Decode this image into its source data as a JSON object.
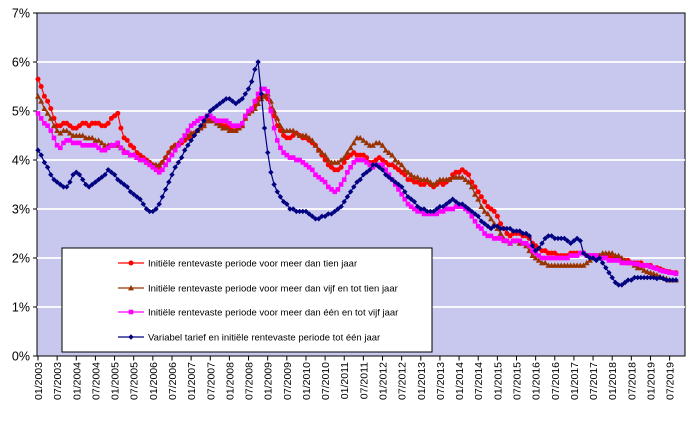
{
  "chart_data": {
    "type": "line",
    "title": "",
    "frequency": "monthly",
    "x_start": "01/2003",
    "x_end": "09/2019",
    "y_axis": {
      "min": 0,
      "max": 7,
      "step": 1,
      "suffix": "%",
      "labels": [
        "0%",
        "1%",
        "2%",
        "3%",
        "4%",
        "5%",
        "6%",
        "7%"
      ]
    },
    "x_tick_labels": [
      "01/2003",
      "07/2003",
      "01/2004",
      "07/2004",
      "01/2005",
      "07/2005",
      "01/2006",
      "07/2006",
      "01/2007",
      "07/2007",
      "01/2008",
      "07/2008",
      "01/2009",
      "07/2009",
      "01/2010",
      "07/2010",
      "01/2011",
      "07/2011",
      "01/2012",
      "07/2012",
      "01/2013",
      "07/2013",
      "01/2014",
      "07/2014",
      "01/2015",
      "07/2015",
      "01/2016",
      "07/2016",
      "01/2017",
      "07/2017",
      "01/2018",
      "07/2018",
      "01/2019",
      "07/2019"
    ],
    "grid": true,
    "legend_position": "overlay-bottom-left",
    "colors": {
      "plot_background": "#C8C8EE",
      "gridline": "#FFFFFF",
      "axis": "#000000",
      "legend_background": "#FFFFFF",
      "legend_border": "#000000"
    },
    "series": [
      {
        "name": "Initiële rentevaste periode voor meer dan tien jaar",
        "color": "#FF0000",
        "marker": "circle",
        "values": [
          5.65,
          5.5,
          5.3,
          5.2,
          5.05,
          4.85,
          4.7,
          4.7,
          4.75,
          4.75,
          4.7,
          4.65,
          4.65,
          4.7,
          4.75,
          4.75,
          4.7,
          4.75,
          4.75,
          4.75,
          4.7,
          4.7,
          4.75,
          4.85,
          4.9,
          4.95,
          4.65,
          4.45,
          4.4,
          4.3,
          4.25,
          4.15,
          4.1,
          4.05,
          4.0,
          3.95,
          3.9,
          3.85,
          3.85,
          3.95,
          4.05,
          4.15,
          4.25,
          4.3,
          4.3,
          4.35,
          4.4,
          4.45,
          4.5,
          4.55,
          4.6,
          4.65,
          4.7,
          4.8,
          4.85,
          4.85,
          4.8,
          4.75,
          4.7,
          4.7,
          4.65,
          4.6,
          4.6,
          4.65,
          4.7,
          4.85,
          4.95,
          5.0,
          5.1,
          5.25,
          5.3,
          5.3,
          5.25,
          5.05,
          4.9,
          4.7,
          4.6,
          4.5,
          4.45,
          4.45,
          4.5,
          4.55,
          4.5,
          4.45,
          4.45,
          4.4,
          4.35,
          4.3,
          4.2,
          4.1,
          4.0,
          3.9,
          3.85,
          3.8,
          3.8,
          3.85,
          3.95,
          4.05,
          4.1,
          4.15,
          4.1,
          4.1,
          4.1,
          4.05,
          3.95,
          3.95,
          4.0,
          4.05,
          4.0,
          3.95,
          3.9,
          3.9,
          3.85,
          3.8,
          3.75,
          3.7,
          3.6,
          3.6,
          3.55,
          3.55,
          3.5,
          3.5,
          3.55,
          3.5,
          3.45,
          3.5,
          3.55,
          3.5,
          3.55,
          3.6,
          3.7,
          3.75,
          3.75,
          3.8,
          3.75,
          3.7,
          3.55,
          3.45,
          3.35,
          3.25,
          3.15,
          3.05,
          3.0,
          2.95,
          2.85,
          2.7,
          2.6,
          2.5,
          2.45,
          2.5,
          2.5,
          2.5,
          2.45,
          2.45,
          2.4,
          2.3,
          2.25,
          2.2,
          2.15,
          2.15,
          2.1,
          2.1,
          2.1,
          2.05,
          2.05,
          2.05,
          2.05,
          2.1,
          2.1,
          2.1,
          2.1,
          2.1,
          2.05,
          2.05,
          2.05,
          2.05,
          2.05,
          2.05,
          2.05,
          2.05,
          2.0,
          2.0,
          2.0,
          1.95,
          1.95,
          1.95,
          1.9,
          1.9,
          1.9,
          1.9,
          1.85,
          1.85,
          1.85,
          1.8,
          1.8,
          1.78,
          1.75,
          1.73,
          1.72,
          1.7,
          1.7
        ]
      },
      {
        "name": "Initiële rentevaste periode voor meer dan vijf en tot tien jaar",
        "color": "#993300",
        "marker": "triangle",
        "values": [
          5.3,
          5.2,
          5.05,
          4.95,
          4.85,
          4.7,
          4.6,
          4.55,
          4.6,
          4.6,
          4.55,
          4.5,
          4.5,
          4.5,
          4.5,
          4.45,
          4.45,
          4.45,
          4.4,
          4.4,
          4.35,
          4.3,
          4.3,
          4.3,
          4.3,
          4.3,
          4.25,
          4.2,
          4.15,
          4.1,
          4.1,
          4.05,
          4.05,
          4.0,
          3.95,
          3.95,
          3.9,
          3.9,
          3.9,
          3.95,
          4.05,
          4.15,
          4.25,
          4.3,
          4.35,
          4.4,
          4.45,
          4.5,
          4.55,
          4.55,
          4.6,
          4.65,
          4.7,
          4.8,
          4.8,
          4.8,
          4.75,
          4.7,
          4.65,
          4.65,
          4.6,
          4.6,
          4.6,
          4.65,
          4.7,
          4.85,
          4.95,
          5.0,
          5.05,
          5.15,
          5.25,
          5.3,
          5.35,
          5.2,
          5.0,
          4.85,
          4.7,
          4.6,
          4.6,
          4.6,
          4.6,
          4.55,
          4.5,
          4.5,
          4.5,
          4.45,
          4.4,
          4.3,
          4.2,
          4.15,
          4.1,
          4.0,
          3.95,
          3.95,
          3.95,
          4.0,
          4.05,
          4.15,
          4.25,
          4.35,
          4.45,
          4.45,
          4.4,
          4.35,
          4.3,
          4.3,
          4.35,
          4.35,
          4.3,
          4.2,
          4.15,
          4.1,
          4.0,
          3.95,
          3.9,
          3.8,
          3.75,
          3.7,
          3.65,
          3.65,
          3.6,
          3.6,
          3.6,
          3.55,
          3.5,
          3.55,
          3.6,
          3.6,
          3.6,
          3.6,
          3.65,
          3.65,
          3.65,
          3.65,
          3.6,
          3.55,
          3.45,
          3.3,
          3.2,
          3.05,
          2.95,
          2.9,
          2.8,
          2.7,
          2.6,
          2.5,
          2.4,
          2.35,
          2.3,
          2.35,
          2.35,
          2.3,
          2.3,
          2.25,
          2.15,
          2.05,
          2.0,
          1.95,
          1.9,
          1.9,
          1.85,
          1.85,
          1.85,
          1.85,
          1.85,
          1.85,
          1.85,
          1.85,
          1.85,
          1.85,
          1.85,
          1.85,
          1.9,
          1.95,
          2.0,
          2.0,
          2.05,
          2.1,
          2.1,
          2.1,
          2.1,
          2.05,
          2.05,
          2.0,
          1.95,
          1.9,
          1.9,
          1.85,
          1.8,
          1.8,
          1.75,
          1.72,
          1.7,
          1.68,
          1.65,
          1.62,
          1.6,
          1.58,
          1.55,
          1.55,
          1.55
        ]
      },
      {
        "name": "Initiële rentevaste periode voor meer dan één en tot vijf jaar",
        "color": "#FF00FF",
        "marker": "square",
        "values": [
          4.95,
          4.85,
          4.75,
          4.7,
          4.6,
          4.45,
          4.3,
          4.25,
          4.35,
          4.4,
          4.4,
          4.35,
          4.35,
          4.35,
          4.3,
          4.3,
          4.3,
          4.3,
          4.3,
          4.25,
          4.2,
          4.2,
          4.25,
          4.3,
          4.3,
          4.35,
          4.25,
          4.15,
          4.15,
          4.1,
          4.1,
          4.05,
          4.0,
          4.0,
          3.95,
          3.9,
          3.85,
          3.8,
          3.75,
          3.8,
          3.9,
          4.0,
          4.1,
          4.2,
          4.3,
          4.4,
          4.5,
          4.6,
          4.7,
          4.75,
          4.8,
          4.85,
          4.85,
          4.9,
          4.9,
          4.85,
          4.8,
          4.8,
          4.8,
          4.8,
          4.75,
          4.7,
          4.7,
          4.7,
          4.75,
          4.9,
          5.0,
          5.05,
          5.2,
          5.35,
          5.45,
          5.45,
          5.4,
          5.0,
          4.65,
          4.4,
          4.25,
          4.15,
          4.1,
          4.05,
          4.05,
          4.0,
          4.0,
          3.95,
          3.9,
          3.85,
          3.8,
          3.7,
          3.65,
          3.6,
          3.55,
          3.45,
          3.4,
          3.35,
          3.4,
          3.5,
          3.6,
          3.75,
          3.85,
          3.95,
          4.0,
          4.0,
          4.0,
          3.95,
          3.9,
          3.85,
          3.9,
          3.9,
          3.9,
          3.8,
          3.7,
          3.6,
          3.5,
          3.4,
          3.3,
          3.2,
          3.1,
          3.05,
          3.0,
          2.95,
          2.95,
          2.9,
          2.9,
          2.9,
          2.9,
          2.9,
          2.95,
          2.95,
          3.0,
          3.0,
          3.0,
          3.05,
          3.05,
          3.05,
          3.0,
          2.95,
          2.85,
          2.75,
          2.65,
          2.6,
          2.5,
          2.45,
          2.45,
          2.4,
          2.4,
          2.4,
          2.35,
          2.35,
          2.3,
          2.35,
          2.35,
          2.35,
          2.3,
          2.3,
          2.25,
          2.15,
          2.1,
          2.05,
          2.0,
          2.0,
          2.0,
          2.0,
          2.0,
          2.0,
          2.0,
          2.0,
          2.0,
          2.05,
          2.05,
          2.05,
          2.1,
          2.1,
          2.05,
          2.05,
          2.05,
          2.05,
          2.0,
          2.0,
          2.0,
          1.95,
          1.95,
          1.95,
          1.95,
          1.9,
          1.9,
          1.9,
          1.9,
          1.88,
          1.88,
          1.85,
          1.85,
          1.85,
          1.82,
          1.8,
          1.78,
          1.75,
          1.73,
          1.72,
          1.7,
          1.7,
          1.68
        ]
      },
      {
        "name": "Variabel tarief en initiële rentevaste periode tot één jaar",
        "color": "#000080",
        "marker": "diamond",
        "values": [
          4.2,
          4.1,
          3.95,
          3.85,
          3.7,
          3.6,
          3.55,
          3.5,
          3.45,
          3.45,
          3.55,
          3.7,
          3.75,
          3.7,
          3.6,
          3.5,
          3.45,
          3.5,
          3.55,
          3.6,
          3.65,
          3.7,
          3.8,
          3.75,
          3.7,
          3.6,
          3.55,
          3.5,
          3.45,
          3.35,
          3.3,
          3.25,
          3.2,
          3.1,
          3.0,
          2.95,
          2.95,
          3.0,
          3.1,
          3.25,
          3.4,
          3.55,
          3.7,
          3.85,
          3.95,
          4.05,
          4.2,
          4.3,
          4.4,
          4.5,
          4.6,
          4.7,
          4.8,
          4.9,
          5.0,
          5.05,
          5.1,
          5.15,
          5.2,
          5.25,
          5.25,
          5.2,
          5.15,
          5.2,
          5.25,
          5.35,
          5.45,
          5.6,
          5.85,
          6.0,
          5.35,
          4.65,
          4.15,
          3.75,
          3.5,
          3.35,
          3.25,
          3.15,
          3.1,
          3.0,
          3.0,
          2.95,
          2.95,
          2.95,
          2.95,
          2.9,
          2.85,
          2.8,
          2.8,
          2.85,
          2.85,
          2.9,
          2.9,
          2.95,
          3.0,
          3.05,
          3.15,
          3.25,
          3.35,
          3.45,
          3.55,
          3.6,
          3.7,
          3.75,
          3.8,
          3.9,
          3.9,
          3.85,
          3.8,
          3.7,
          3.65,
          3.6,
          3.55,
          3.5,
          3.45,
          3.35,
          3.25,
          3.2,
          3.15,
          3.05,
          3.0,
          3.0,
          2.95,
          2.95,
          2.95,
          3.0,
          3.05,
          3.05,
          3.1,
          3.15,
          3.2,
          3.15,
          3.1,
          3.1,
          3.05,
          3.0,
          2.95,
          2.9,
          2.85,
          2.75,
          2.7,
          2.65,
          2.6,
          2.65,
          2.65,
          2.6,
          2.6,
          2.6,
          2.6,
          2.55,
          2.55,
          2.55,
          2.5,
          2.5,
          2.45,
          2.25,
          2.15,
          2.2,
          2.3,
          2.4,
          2.45,
          2.45,
          2.4,
          2.4,
          2.4,
          2.4,
          2.35,
          2.3,
          2.35,
          2.4,
          2.35,
          2.1,
          2.05,
          2.0,
          2.0,
          1.95,
          2.0,
          1.9,
          1.8,
          1.7,
          1.6,
          1.5,
          1.45,
          1.45,
          1.5,
          1.55,
          1.55,
          1.6,
          1.6,
          1.6,
          1.6,
          1.6,
          1.6,
          1.6,
          1.58,
          1.6,
          1.58,
          1.55,
          1.55,
          1.55,
          1.55
        ]
      }
    ]
  }
}
